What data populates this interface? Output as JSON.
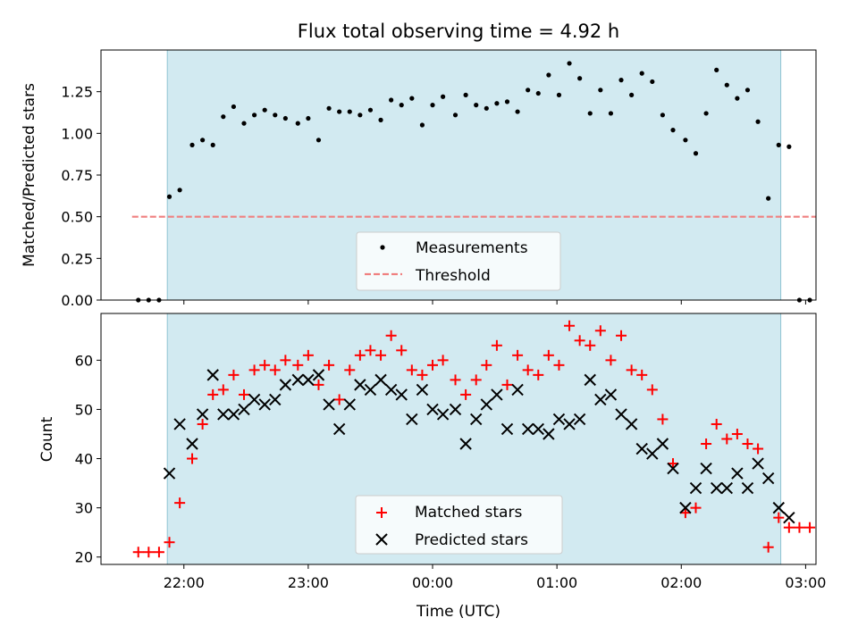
{
  "chart_data": [
    {
      "type": "scatter",
      "title": "Flux total observing time = 4.92 h",
      "xlabel": "",
      "ylabel": "Matched/Predicted stars",
      "xlim": [
        "21:20",
        "03:05"
      ],
      "ylim": [
        0,
        1.5
      ],
      "yticks": [
        "0.00",
        "0.25",
        "0.50",
        "0.75",
        "1.00",
        "1.25"
      ],
      "shaded_interval": [
        "21:52",
        "02:48"
      ],
      "shade_color": "#add8e6",
      "threshold": {
        "name": "Threshold",
        "value": 0.5,
        "x_range": [
          "21:35",
          "03:05"
        ],
        "color": "#f08080"
      },
      "legend_position": "lower center",
      "series": [
        {
          "name": "Measurements",
          "color": "#000000",
          "marker": "dot",
          "x": [
            "21:38",
            "21:43",
            "21:48",
            "21:53",
            "21:58",
            "22:04",
            "22:09",
            "22:14",
            "22:19",
            "22:24",
            "22:29",
            "22:34",
            "22:39",
            "22:44",
            "22:49",
            "22:55",
            "23:00",
            "23:05",
            "23:10",
            "23:15",
            "23:20",
            "23:25",
            "23:30",
            "23:35",
            "23:40",
            "23:45",
            "23:50",
            "23:55",
            "00:00",
            "00:05",
            "00:11",
            "00:16",
            "00:21",
            "00:26",
            "00:31",
            "00:36",
            "00:41",
            "00:46",
            "00:51",
            "00:56",
            "01:01",
            "01:06",
            "01:11",
            "01:16",
            "01:21",
            "01:26",
            "01:31",
            "01:36",
            "01:41",
            "01:46",
            "01:51",
            "01:56",
            "02:02",
            "02:07",
            "02:12",
            "02:17",
            "02:22",
            "02:27",
            "02:32",
            "02:37",
            "02:42",
            "02:47",
            "02:52",
            "02:57",
            "03:02"
          ],
          "y": [
            0.0,
            0.0,
            0.0,
            0.62,
            0.66,
            0.93,
            0.96,
            0.93,
            1.1,
            1.16,
            1.06,
            1.11,
            1.14,
            1.11,
            1.09,
            1.06,
            1.09,
            0.96,
            1.15,
            1.13,
            1.13,
            1.11,
            1.14,
            1.08,
            1.2,
            1.17,
            1.21,
            1.05,
            1.17,
            1.22,
            1.11,
            1.23,
            1.17,
            1.15,
            1.18,
            1.19,
            1.13,
            1.26,
            1.24,
            1.35,
            1.23,
            1.42,
            1.33,
            1.12,
            1.26,
            1.12,
            1.32,
            1.23,
            1.36,
            1.31,
            1.11,
            1.02,
            0.96,
            0.88,
            1.12,
            1.38,
            1.29,
            1.21,
            1.26,
            1.07,
            0.61,
            0.93,
            0.92,
            0.0,
            0.0
          ]
        }
      ]
    },
    {
      "type": "scatter",
      "title": "",
      "xlabel": "Time (UTC)",
      "ylabel": "Count",
      "xlim": [
        "21:20",
        "03:05"
      ],
      "ylim": [
        18.5,
        69.5
      ],
      "yticks": [
        20,
        30,
        40,
        50,
        60
      ],
      "xticks": [
        "22:00",
        "23:00",
        "00:00",
        "01:00",
        "02:00",
        "03:00"
      ],
      "shaded_interval": [
        "21:52",
        "02:48"
      ],
      "shade_color": "#add8e6",
      "legend_position": "lower center",
      "series": [
        {
          "name": "Matched stars",
          "color": "#ff0000",
          "marker": "plus",
          "x": [
            "21:38",
            "21:43",
            "21:48",
            "21:53",
            "21:58",
            "22:04",
            "22:09",
            "22:14",
            "22:19",
            "22:24",
            "22:29",
            "22:34",
            "22:39",
            "22:44",
            "22:49",
            "22:55",
            "23:00",
            "23:05",
            "23:10",
            "23:15",
            "23:20",
            "23:25",
            "23:30",
            "23:35",
            "23:40",
            "23:45",
            "23:50",
            "23:55",
            "00:00",
            "00:05",
            "00:11",
            "00:16",
            "00:21",
            "00:26",
            "00:31",
            "00:36",
            "00:41",
            "00:46",
            "00:51",
            "00:56",
            "01:01",
            "01:06",
            "01:11",
            "01:16",
            "01:21",
            "01:26",
            "01:31",
            "01:36",
            "01:41",
            "01:46",
            "01:51",
            "01:56",
            "02:02",
            "02:07",
            "02:12",
            "02:17",
            "02:22",
            "02:27",
            "02:32",
            "02:37",
            "02:42",
            "02:47",
            "02:52",
            "02:57",
            "03:02"
          ],
          "y": [
            21,
            21,
            21,
            23,
            31,
            40,
            47,
            53,
            54,
            57,
            53,
            58,
            59,
            58,
            60,
            59,
            61,
            55,
            59,
            52,
            58,
            61,
            62,
            61,
            65,
            62,
            58,
            57,
            59,
            60,
            56,
            53,
            56,
            59,
            63,
            55,
            61,
            58,
            57,
            61,
            59,
            67,
            64,
            63,
            66,
            60,
            65,
            58,
            57,
            54,
            48,
            39,
            29,
            30,
            43,
            47,
            44,
            45,
            43,
            42,
            22,
            28,
            26,
            26,
            26
          ]
        },
        {
          "name": "Predicted stars",
          "color": "#000000",
          "marker": "x",
          "x": [
            "21:53",
            "21:58",
            "22:04",
            "22:09",
            "22:14",
            "22:19",
            "22:24",
            "22:29",
            "22:34",
            "22:39",
            "22:44",
            "22:49",
            "22:55",
            "23:00",
            "23:05",
            "23:10",
            "23:15",
            "23:20",
            "23:25",
            "23:30",
            "23:35",
            "23:40",
            "23:45",
            "23:50",
            "23:55",
            "00:00",
            "00:05",
            "00:11",
            "00:16",
            "00:21",
            "00:26",
            "00:31",
            "00:36",
            "00:41",
            "00:46",
            "00:51",
            "00:56",
            "01:01",
            "01:06",
            "01:11",
            "01:16",
            "01:21",
            "01:26",
            "01:31",
            "01:36",
            "01:41",
            "01:46",
            "01:51",
            "01:56",
            "02:02",
            "02:07",
            "02:12",
            "02:17",
            "02:22",
            "02:27",
            "02:32",
            "02:37",
            "02:42",
            "02:47",
            "02:52"
          ],
          "y": [
            37,
            47,
            43,
            49,
            57,
            49,
            49,
            50,
            52,
            51,
            52,
            55,
            56,
            56,
            57,
            51,
            46,
            51,
            55,
            54,
            56,
            54,
            53,
            48,
            54,
            50,
            49,
            50,
            43,
            48,
            51,
            53,
            46,
            54,
            46,
            46,
            45,
            48,
            47,
            48,
            56,
            52,
            53,
            49,
            47,
            42,
            41,
            43,
            38,
            30,
            34,
            38,
            34,
            34,
            37,
            34,
            39,
            36,
            30,
            28
          ]
        }
      ]
    }
  ]
}
